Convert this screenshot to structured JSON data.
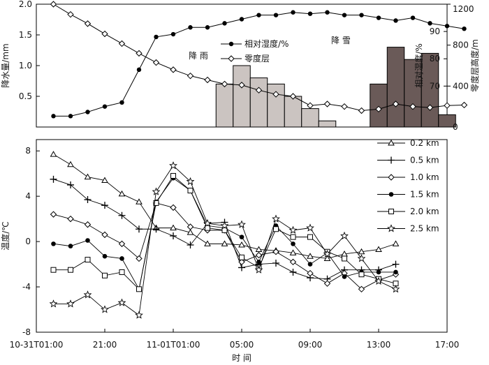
{
  "chart_data": [
    {
      "type": "bar+line",
      "title": "",
      "x_unit": "hours since 10-31T01:00",
      "precipitation": {
        "name": "降水量",
        "ylabel": "降水量/mm",
        "ylim": [
          0,
          2.0
        ],
        "yticks": [
          "0.5",
          "1.0",
          "1.5",
          "2.0"
        ],
        "rain": {
          "label": "降 雨",
          "x": [
            11,
            12,
            13,
            14,
            15,
            16,
            17
          ],
          "values": [
            0.7,
            1.0,
            0.8,
            0.7,
            0.5,
            0.3,
            0.1
          ]
        },
        "snow": {
          "label": "降 雪",
          "x": [
            20,
            21,
            22,
            23,
            24,
            25
          ],
          "values": [
            0.7,
            1.3,
            1.1,
            1.2,
            0.2,
            0.0
          ]
        }
      },
      "humidity": {
        "name": "相对湿度/%",
        "ylabel": "相对湿度/%",
        "ylim": [
          55,
          100
        ],
        "yticks": [
          "70",
          "80",
          "90"
        ],
        "x": [
          1,
          2,
          3,
          4,
          5,
          6,
          7,
          8,
          9,
          10,
          11,
          12,
          13,
          14,
          15,
          16,
          17,
          18,
          19,
          20,
          21,
          22,
          23,
          24,
          25
        ],
        "values": [
          59,
          59,
          60.5,
          62.5,
          64,
          76,
          88,
          89,
          91.5,
          91.5,
          93,
          94.5,
          96,
          96,
          97,
          96.5,
          97,
          96,
          96,
          95,
          94,
          95,
          93,
          92,
          91
        ]
      },
      "zero_layer": {
        "name": "零度层",
        "ylabel": "零度层高度/m",
        "ylim": [
          0,
          1200
        ],
        "yticks": [
          "0",
          "400",
          "800",
          "1200"
        ],
        "x": [
          1,
          2,
          3,
          4,
          5,
          6,
          7,
          8,
          9,
          10,
          11,
          12,
          13,
          14,
          15,
          16,
          17,
          18,
          19,
          20,
          21,
          22,
          23,
          24,
          25
        ],
        "values": [
          1200,
          1100,
          1010,
          910,
          815,
          720,
          630,
          560,
          500,
          460,
          420,
          410,
          360,
          320,
          300,
          210,
          225,
          200,
          160,
          175,
          225,
          200,
          190,
          210,
          215
        ]
      }
    },
    {
      "type": "line",
      "xlabel": "时 间",
      "ylabel": "温度/℃",
      "ylim": [
        -8,
        9
      ],
      "yticks": [
        "-8",
        "-4",
        "0",
        "4",
        "8"
      ],
      "xticks": [
        {
          "x": 0,
          "label": "10-31T01:00"
        },
        {
          "x": 4,
          "label": "21:00"
        },
        {
          "x": 8,
          "label": "11-01T01:00"
        },
        {
          "x": 12,
          "label": "05:00"
        },
        {
          "x": 16,
          "label": "09:00"
        },
        {
          "x": 20,
          "label": "13:00"
        },
        {
          "x": 24,
          "label": "17:00"
        }
      ],
      "x": [
        1,
        2,
        3,
        4,
        5,
        6,
        7,
        8,
        9,
        10,
        11,
        12,
        13,
        14,
        15,
        16,
        17,
        18,
        19,
        20,
        21
      ],
      "series": [
        {
          "name": "0.2 km",
          "marker": "triangle",
          "values": [
            7.7,
            6.8,
            5.7,
            5.4,
            4.2,
            3.5,
            1.2,
            1.2,
            0.8,
            -0.2,
            -0.2,
            -0.3,
            -0.7,
            -0.8,
            -1.0,
            -1.3,
            -1.5,
            -1.1,
            -0.9,
            -0.7,
            -0.2
          ]
        },
        {
          "name": "0.5 km",
          "marker": "plus",
          "values": [
            5.5,
            5.0,
            3.7,
            3.2,
            2.3,
            1.1,
            1.1,
            0.5,
            -0.3,
            1.6,
            1.7,
            -2.3,
            -2.0,
            -1.9,
            -2.7,
            -3.2,
            -3.3,
            -2.5,
            -2.5,
            -2.5,
            -2.0
          ]
        },
        {
          "name": "1.0 km",
          "marker": "diamond",
          "values": [
            2.4,
            2.0,
            1.5,
            0.6,
            -0.2,
            -1.5,
            3.4,
            3.0,
            1.3,
            1.0,
            1.0,
            -1.8,
            -1.2,
            -0.9,
            -1.8,
            -2.8,
            -3.7,
            -2.8,
            -4.2,
            -3.4,
            -2.9
          ]
        },
        {
          "name": "1.5 km",
          "marker": "circle-filled",
          "values": [
            -0.2,
            -0.4,
            0.1,
            -1.3,
            -1.5,
            -4.2,
            3.5,
            5.6,
            4.5,
            1.4,
            1.2,
            0.4,
            -1.8,
            1.4,
            -0.2,
            -2.0,
            -1.0,
            -3.1,
            -2.7,
            -2.7,
            -2.7
          ]
        },
        {
          "name": "2.0 km",
          "marker": "square",
          "values": [
            -2.5,
            -2.5,
            -1.6,
            -3.0,
            -2.7,
            -4.2,
            3.4,
            5.8,
            4.5,
            1.2,
            1.0,
            -1.4,
            -2.3,
            1.1,
            0.4,
            0.4,
            -0.9,
            -1.5,
            -2.9,
            -3.3,
            -3.7
          ]
        },
        {
          "name": "2.5 km",
          "marker": "star",
          "values": [
            -5.5,
            -5.5,
            -4.7,
            -6.0,
            -5.4,
            -6.5,
            4.4,
            6.7,
            5.3,
            1.6,
            1.4,
            1.5,
            -2.5,
            2.0,
            1.0,
            1.2,
            -1.1,
            0.5,
            -1.5,
            -3.5,
            -4.2
          ]
        }
      ]
    }
  ]
}
